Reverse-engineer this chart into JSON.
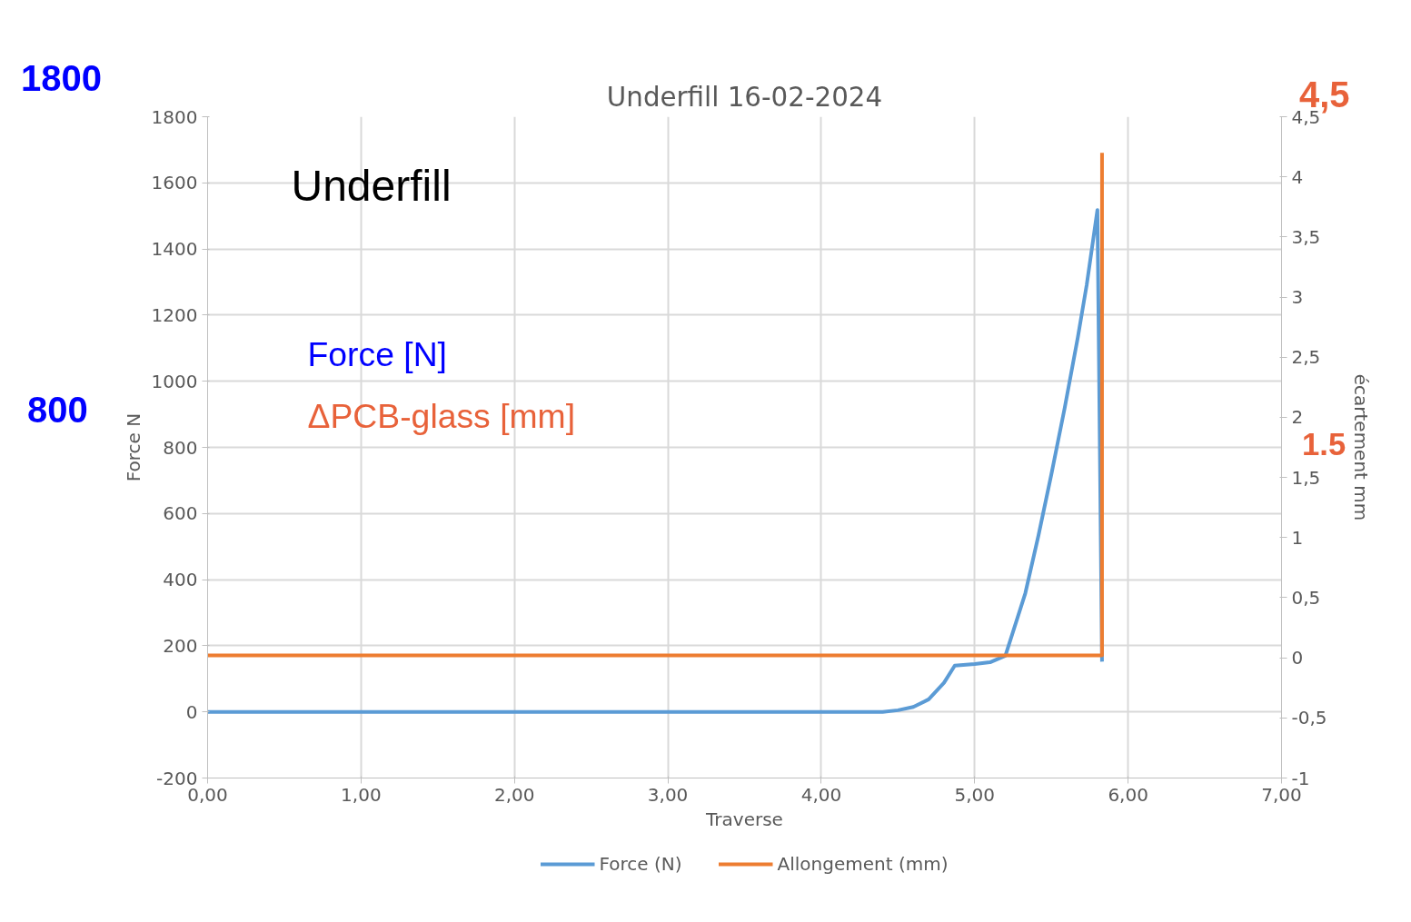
{
  "chart_data": {
    "type": "line",
    "title": "Underfill 16-02-2024",
    "xlabel": "Traverse",
    "ylabel": "Force N",
    "y2label": "écartement mm",
    "annotations": [
      "Underfill",
      "Force [N]",
      "ΔPCB-glass [mm]",
      "1800",
      "800",
      "4,5",
      "1.5"
    ],
    "series": [
      {
        "name": "Force (N)",
        "color": "#5b9bd5",
        "x": [
          0,
          1,
          2,
          3,
          4,
          4.4,
          4.5,
          4.6,
          4.7,
          4.8,
          4.87,
          5.0,
          5.1,
          5.2,
          5.33,
          5.415,
          5.5,
          5.586,
          5.672,
          5.73,
          5.8,
          5.83
        ],
        "values": [
          0,
          0,
          0,
          0,
          0,
          0,
          5,
          15,
          38,
          88,
          140,
          145,
          150,
          170,
          359,
          532,
          719,
          918,
          1132,
          1291,
          1518,
          152
        ]
      },
      {
        "name": "Allongement (mm)",
        "color": "#ed7d31",
        "axis": "y2",
        "x": [
          0,
          2,
          4,
          5.83,
          5.83
        ],
        "values": [
          0.02,
          0.02,
          0.02,
          0.02,
          4.2
        ]
      }
    ],
    "xlim": [
      0,
      7
    ],
    "ylim": [
      -200,
      1800
    ],
    "y2lim": [
      -1,
      4.5
    ],
    "xticks": [
      {
        "value": 0,
        "label": "0,00"
      },
      {
        "value": 1,
        "label": "1,00"
      },
      {
        "value": 2,
        "label": "2,00"
      },
      {
        "value": 3,
        "label": "3,00"
      },
      {
        "value": 4,
        "label": "4,00"
      },
      {
        "value": 5,
        "label": "5,00"
      },
      {
        "value": 6,
        "label": "6,00"
      },
      {
        "value": 7,
        "label": "7,00"
      }
    ],
    "yticks": [
      -200,
      0,
      200,
      400,
      600,
      800,
      1000,
      1200,
      1400,
      1600,
      1800
    ],
    "y2ticks": [
      -1,
      {
        "value": -0.5,
        "label": "-0,5"
      },
      0,
      {
        "value": 0.5,
        "label": "0,5"
      },
      1,
      {
        "value": 1.5,
        "label": "1,5"
      },
      2,
      {
        "value": 2.5,
        "label": "2,5"
      },
      3,
      {
        "value": 3.5,
        "label": "3,5"
      },
      4,
      {
        "value": 4.5,
        "label": "4,5"
      }
    ],
    "grid": true,
    "legend": "bottom",
    "line_style": "solid",
    "marker": "none"
  }
}
